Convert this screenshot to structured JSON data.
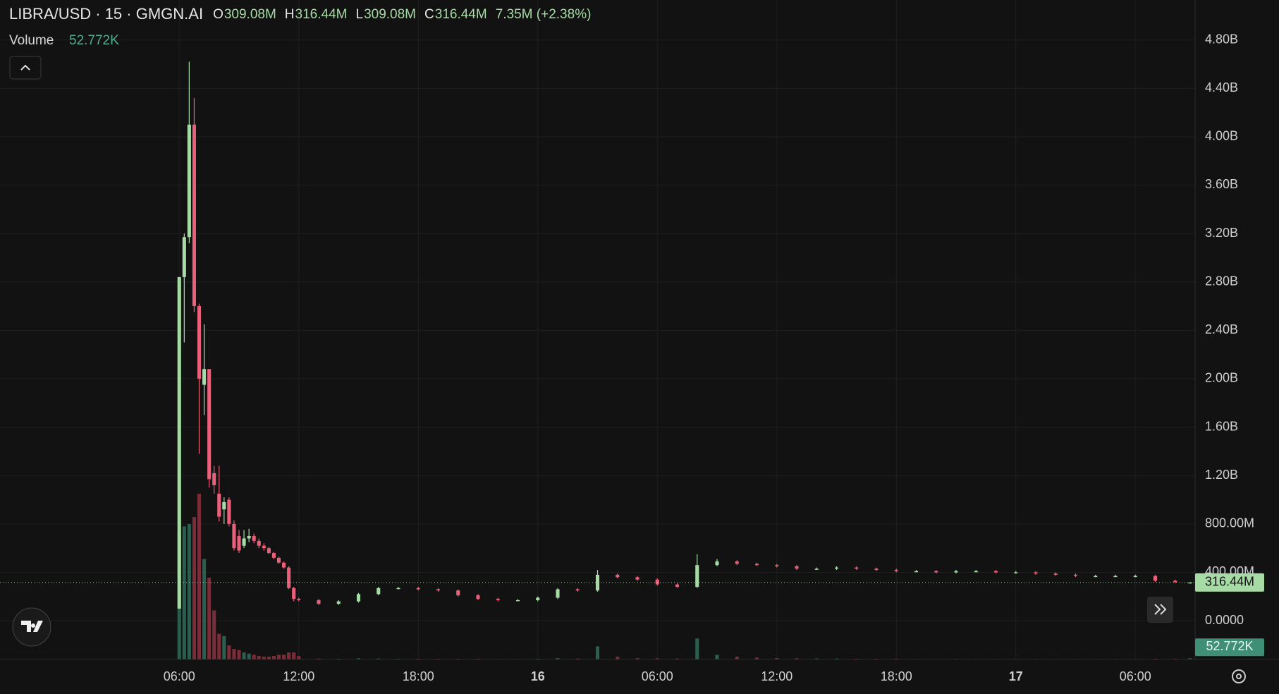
{
  "chart_data": {
    "type": "candlestick",
    "title": "LIBRA/USD · 15 · GMGN.AI",
    "ohlc_legend": [
      {
        "key": "O",
        "text": "309.08M"
      },
      {
        "key": "H",
        "text": "316.44M"
      },
      {
        "key": "L",
        "text": "309.08M"
      },
      {
        "key": "C",
        "text": "316.44M"
      }
    ],
    "change": "7.35M (+2.38%)",
    "volume_legend": {
      "name": "Volume",
      "text": "52.772K"
    },
    "up_color": "#a6dba5",
    "down_color": "#e8607a",
    "volume_up_color": "#2a5e4e",
    "volume_down_color": "#7a2d38",
    "grid": true,
    "xlim": [
      -3,
      57
    ],
    "xticks": [
      {
        "value": 6,
        "label": "06:00"
      },
      {
        "value": 12,
        "label": "12:00"
      },
      {
        "value": 18,
        "label": "18:00"
      },
      {
        "value": 24,
        "label": "16"
      },
      {
        "value": 30,
        "label": "06:00"
      },
      {
        "value": 36,
        "label": "12:00"
      },
      {
        "value": 42,
        "label": "18:00"
      },
      {
        "value": 48,
        "label": "17"
      },
      {
        "value": 54,
        "label": "06:00"
      }
    ],
    "ylim": [
      -320000000.0,
      5130000000.0
    ],
    "yticks": [
      {
        "value": 0,
        "label": "0.0000"
      },
      {
        "value": 400000000.0,
        "label": "400.00M"
      },
      {
        "value": 800000000.0,
        "label": "800.00M"
      },
      {
        "value": 1200000000.0,
        "label": "1.20B"
      },
      {
        "value": 1600000000.0,
        "label": "1.60B"
      },
      {
        "value": 2000000000.0,
        "label": "2.00B"
      },
      {
        "value": 2400000000.0,
        "label": "2.40B"
      },
      {
        "value": 2800000000.0,
        "label": "2.80B"
      },
      {
        "value": 3200000000.0,
        "label": "3.20B"
      },
      {
        "value": 3600000000.0,
        "label": "3.60B"
      },
      {
        "value": 4000000000.0,
        "label": "4.00B"
      },
      {
        "value": 4400000000.0,
        "label": "4.40B"
      },
      {
        "value": 4800000000.0,
        "label": "4.80B"
      }
    ],
    "last_price": {
      "value": 316440000,
      "label": "316.44M"
    },
    "last_volume": {
      "value": 52772,
      "label": "52.772K"
    },
    "x": [
      6,
      6.25,
      6.5,
      6.75,
      7,
      7.25,
      7.5,
      7.75,
      8,
      8.25,
      8.5,
      8.75,
      9,
      9.25,
      9.5,
      9.75,
      10,
      10.25,
      10.5,
      10.75,
      11,
      11.25,
      11.5,
      11.75,
      12,
      13,
      14,
      15,
      16,
      17,
      18,
      19,
      20,
      21,
      22,
      23,
      24,
      25,
      26,
      27,
      28,
      29,
      30,
      31,
      32,
      33,
      34,
      35,
      36,
      37,
      38,
      39,
      40,
      41,
      42,
      43,
      44,
      45,
      46,
      47,
      48,
      49,
      50,
      51,
      52,
      53,
      54,
      55,
      56,
      56.75
    ],
    "open": [
      100000000.0,
      2840000000.0,
      3170000000.0,
      4100000000.0,
      2600000000.0,
      1950000000.0,
      2080000000.0,
      1220000000.0,
      1050000000.0,
      920000000.0,
      1000000000.0,
      800000000.0,
      700000000.0,
      620000000.0,
      680000000.0,
      700000000.0,
      660000000.0,
      620000000.0,
      600000000.0,
      560000000.0,
      520000000.0,
      480000000.0,
      440000000.0,
      270000000.0,
      180000000.0,
      170000000.0,
      140000000.0,
      160000000.0,
      220000000.0,
      270000000.0,
      270000000.0,
      260000000.0,
      250000000.0,
      210000000.0,
      180000000.0,
      170000000.0,
      170000000.0,
      190000000.0,
      260000000.0,
      250000000.0,
      380000000.0,
      360000000.0,
      340000000.0,
      300000000.0,
      280000000.0,
      460000000.0,
      490000000.0,
      470000000.0,
      460000000.0,
      450000000.0,
      430000000.0,
      430000000.0,
      440000000.0,
      430000000.0,
      420000000.0,
      410000000.0,
      410000000.0,
      400000000.0,
      410000000.0,
      410000000.0,
      400000000.0,
      400000000.0,
      390000000.0,
      380000000.0,
      370000000.0,
      370000000.0,
      370000000.0,
      370000000.0,
      330000000.0,
      309080000
    ],
    "high": [
      2840000000.0,
      3200000000.0,
      4620000000.0,
      4320000000.0,
      2620000000.0,
      2450000000.0,
      2080000000.0,
      1280000000.0,
      1280000000.0,
      1020000000.0,
      1020000000.0,
      830000000.0,
      750000000.0,
      750000000.0,
      760000000.0,
      720000000.0,
      680000000.0,
      640000000.0,
      610000000.0,
      570000000.0,
      530000000.0,
      490000000.0,
      450000000.0,
      280000000.0,
      190000000.0,
      180000000.0,
      170000000.0,
      230000000.0,
      280000000.0,
      280000000.0,
      280000000.0,
      270000000.0,
      260000000.0,
      220000000.0,
      190000000.0,
      180000000.0,
      200000000.0,
      270000000.0,
      270000000.0,
      420000000.0,
      390000000.0,
      370000000.0,
      350000000.0,
      310000000.0,
      550000000.0,
      510000000.0,
      500000000.0,
      480000000.0,
      470000000.0,
      460000000.0,
      440000000.0,
      450000000.0,
      450000000.0,
      440000000.0,
      430000000.0,
      420000000.0,
      420000000.0,
      420000000.0,
      420000000.0,
      420000000.0,
      410000000.0,
      410000000.0,
      400000000.0,
      390000000.0,
      380000000.0,
      380000000.0,
      380000000.0,
      380000000.0,
      340000000.0,
      316440000
    ],
    "low": [
      100000000.0,
      2300000000.0,
      3120000000.0,
      2550000000.0,
      1380000000.0,
      1700000000.0,
      1100000000.0,
      1050000000.0,
      820000000.0,
      800000000.0,
      780000000.0,
      580000000.0,
      560000000.0,
      600000000.0,
      650000000.0,
      640000000.0,
      600000000.0,
      580000000.0,
      550000000.0,
      510000000.0,
      470000000.0,
      430000000.0,
      260000000.0,
      160000000.0,
      160000000.0,
      130000000.0,
      130000000.0,
      150000000.0,
      210000000.0,
      260000000.0,
      250000000.0,
      240000000.0,
      200000000.0,
      170000000.0,
      160000000.0,
      160000000.0,
      160000000.0,
      180000000.0,
      240000000.0,
      240000000.0,
      350000000.0,
      330000000.0,
      290000000.0,
      270000000.0,
      270000000.0,
      450000000.0,
      460000000.0,
      450000000.0,
      440000000.0,
      420000000.0,
      420000000.0,
      420000000.0,
      420000000.0,
      410000000.0,
      400000000.0,
      400000000.0,
      390000000.0,
      390000000.0,
      400000000.0,
      390000000.0,
      390000000.0,
      380000000.0,
      370000000.0,
      360000000.0,
      360000000.0,
      360000000.0,
      360000000.0,
      320000000.0,
      310000000.0,
      309080000
    ],
    "close": [
      2840000000.0,
      3170000000.0,
      4100000000.0,
      2600000000.0,
      2000000000.0,
      2080000000.0,
      1170000000.0,
      1120000000.0,
      860000000.0,
      980000000.0,
      800000000.0,
      600000000.0,
      580000000.0,
      680000000.0,
      700000000.0,
      660000000.0,
      620000000.0,
      600000000.0,
      560000000.0,
      520000000.0,
      480000000.0,
      440000000.0,
      270000000.0,
      180000000.0,
      170000000.0,
      140000000.0,
      160000000.0,
      220000000.0,
      270000000.0,
      270000000.0,
      260000000.0,
      250000000.0,
      210000000.0,
      180000000.0,
      170000000.0,
      170000000.0,
      190000000.0,
      260000000.0,
      250000000.0,
      380000000.0,
      360000000.0,
      340000000.0,
      300000000.0,
      280000000.0,
      460000000.0,
      490000000.0,
      470000000.0,
      460000000.0,
      450000000.0,
      430000000.0,
      430000000.0,
      440000000.0,
      430000000.0,
      420000000.0,
      410000000.0,
      410000000.0,
      400000000.0,
      410000000.0,
      410000000.0,
      400000000.0,
      400000000.0,
      390000000.0,
      380000000.0,
      370000000.0,
      370000000.0,
      370000000.0,
      370000000.0,
      330000000.0,
      320000000.0,
      316440000
    ],
    "volume": [
      5500000.0,
      5700000.0,
      5800000.0,
      6100000.0,
      7100000.0,
      4300000.0,
      3500000.0,
      2100000.0,
      1100000.0,
      1000000.0,
      600000.0,
      450000.0,
      400000.0,
      300000.0,
      250000.0,
      200000.0,
      150000.0,
      120000.0,
      120000.0,
      150000.0,
      200000.0,
      200000.0,
      300000.0,
      300000.0,
      150000.0,
      40000.0,
      30000.0,
      50000.0,
      40000.0,
      30000.0,
      30000.0,
      30000.0,
      30000.0,
      30000.0,
      20000.0,
      20000.0,
      30000.0,
      60000.0,
      40000.0,
      560000.0,
      120000.0,
      60000.0,
      50000.0,
      40000.0,
      900000.0,
      200000.0,
      120000.0,
      80000.0,
      60000.0,
      50000.0,
      40000.0,
      40000.0,
      30000.0,
      30000.0,
      30000.0,
      20000.0,
      20000.0,
      20000.0,
      20000.0,
      20000.0,
      20000.0,
      20000.0,
      20000.0,
      20000.0,
      20000.0,
      20000.0,
      20000.0,
      30000.0,
      30000.0,
      52772
    ]
  }
}
